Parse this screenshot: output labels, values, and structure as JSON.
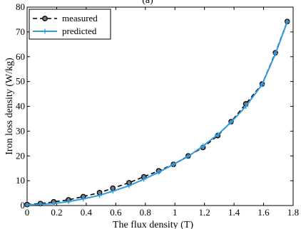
{
  "chart_data": {
    "type": "line",
    "title_fragment": "(a)",
    "xlabel": "The flux density (T)",
    "ylabel": "Iron loss density (W/kg)",
    "xlim": [
      0,
      1.8
    ],
    "ylim": [
      0,
      80
    ],
    "x_ticks": [
      "0",
      "0.2",
      "0.4",
      "0.6",
      "0.8",
      "1",
      "1.2",
      "1.4",
      "1.6",
      "1.8"
    ],
    "y_ticks": [
      "0",
      "10",
      "20",
      "30",
      "40",
      "50",
      "60",
      "70",
      "80"
    ],
    "grid": false,
    "legend_position": "top-left",
    "series": [
      {
        "name": "measured",
        "color": "#000000",
        "style": "dashed-circle-markers",
        "x": [
          0,
          0.09,
          0.18,
          0.28,
          0.38,
          0.49,
          0.58,
          0.69,
          0.79,
          0.89,
          0.99,
          1.09,
          1.19,
          1.29,
          1.38,
          1.48,
          1.59,
          1.68,
          1.76
        ],
        "y": [
          0.4,
          0.8,
          1.5,
          2.3,
          3.6,
          5.2,
          7.0,
          9.2,
          11.6,
          14.0,
          16.6,
          20.0,
          23.4,
          28.2,
          33.8,
          41.0,
          49.0,
          61.6,
          74.2
        ]
      },
      {
        "name": "predicted",
        "color": "#2e9ae0",
        "style": "solid-plus-markers",
        "x": [
          0,
          0.09,
          0.18,
          0.28,
          0.38,
          0.49,
          0.58,
          0.69,
          0.79,
          0.89,
          0.99,
          1.09,
          1.19,
          1.29,
          1.38,
          1.48,
          1.59,
          1.68,
          1.76
        ],
        "y": [
          0.2,
          0.5,
          0.8,
          1.6,
          2.7,
          4.1,
          5.8,
          8.0,
          10.6,
          13.4,
          16.6,
          19.8,
          24.0,
          28.6,
          33.6,
          40.0,
          48.8,
          61.2,
          74.0
        ]
      }
    ]
  }
}
